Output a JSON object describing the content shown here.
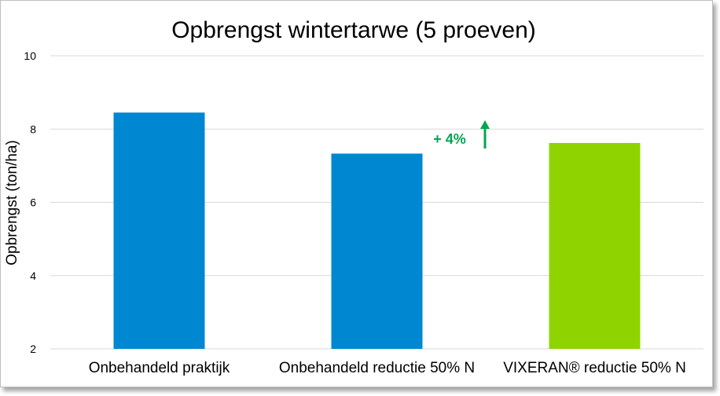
{
  "chart_data": {
    "type": "bar",
    "title": "Opbrengst wintertarwe (5 proeven)",
    "ylabel": "Opbrengst (ton/ha)",
    "xlabel": "",
    "ylim": [
      2,
      10
    ],
    "yticks": [
      2,
      4,
      6,
      8,
      10
    ],
    "ytick_labels": [
      "2",
      "4",
      "6",
      "8",
      "10"
    ],
    "categories": [
      "Onbehandeld praktijk",
      "Onbehandeld reductie 50% N",
      "VIXERAN® reductie 50% N"
    ],
    "values": [
      8.45,
      7.33,
      7.62
    ],
    "bar_colors": [
      "#0087d1",
      "#0087d1",
      "#8fd400"
    ],
    "grid": true,
    "annotation": {
      "text": "+ 4%",
      "color": "#00a651",
      "arrow": "up-arrow"
    }
  }
}
